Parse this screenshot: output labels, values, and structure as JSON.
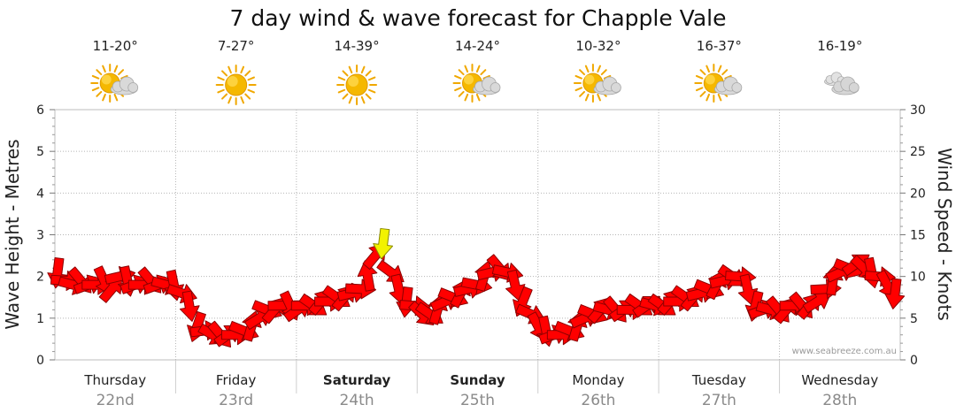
{
  "chart_data": {
    "type": "line",
    "title": "7 day wind & wave forecast for Chapple Vale",
    "ylabel_left": "Wave Height - Metres",
    "ylabel_right": "Wind Speed - Knots",
    "ylim_left": [
      0,
      6
    ],
    "ylim_right": [
      0,
      30
    ],
    "yticks_left": [
      "0",
      "1",
      "2",
      "3",
      "4",
      "5",
      "6"
    ],
    "yticks_right": [
      "0",
      "5",
      "10",
      "15",
      "20",
      "25",
      "30"
    ],
    "credit": "www.seabreeze.com.au",
    "days": [
      {
        "name": "Thursday",
        "date": "22nd",
        "bold": false,
        "temp": "11-20°",
        "weather": "partly-cloudy"
      },
      {
        "name": "Friday",
        "date": "23rd",
        "bold": false,
        "temp": "7-27°",
        "weather": "sunny"
      },
      {
        "name": "Saturday",
        "date": "24th",
        "bold": true,
        "temp": "14-39°",
        "weather": "sunny"
      },
      {
        "name": "Sunday",
        "date": "25th",
        "bold": true,
        "temp": "14-24°",
        "weather": "partly-cloudy"
      },
      {
        "name": "Monday",
        "date": "26th",
        "bold": false,
        "temp": "10-32°",
        "weather": "partly-cloudy"
      },
      {
        "name": "Tuesday",
        "date": "27th",
        "bold": false,
        "temp": "16-37°",
        "weather": "partly-cloudy"
      },
      {
        "name": "Wednesday",
        "date": "28th",
        "bold": false,
        "temp": "16-19°",
        "weather": "cloudy"
      }
    ],
    "wind_knots": [
      10.5,
      9.5,
      9.0,
      9.5,
      9.0,
      9.0,
      9.5,
      8.5,
      10.0,
      9.5,
      9.0,
      9.0,
      9.5,
      9.0,
      9.0,
      9.0,
      8.0,
      6.5,
      4.0,
      3.5,
      3.0,
      3.0,
      3.0,
      3.0,
      3.5,
      4.0,
      5.0,
      6.0,
      6.0,
      6.5,
      6.5,
      6.0,
      6.5,
      6.5,
      7.0,
      7.0,
      7.5,
      7.5,
      8.0,
      8.5,
      10.0,
      12.5,
      14.0,
      10.5,
      8.5,
      7.0,
      6.5,
      5.5,
      5.5,
      6.0,
      7.0,
      7.5,
      8.0,
      8.5,
      9.0,
      10.0,
      10.5,
      11.0,
      10.5,
      9.0,
      7.0,
      5.5,
      4.0,
      3.5,
      3.0,
      3.0,
      3.5,
      4.0,
      5.0,
      5.5,
      6.0,
      6.0,
      6.0,
      6.0,
      6.0,
      6.5,
      6.5,
      6.5,
      6.5,
      7.0,
      7.0,
      7.5,
      7.5,
      8.0,
      8.5,
      9.0,
      9.5,
      10.0,
      10.0,
      8.5,
      6.5,
      6.0,
      6.0,
      6.0,
      6.0,
      6.5,
      6.5,
      6.5,
      7.0,
      8.5,
      9.5,
      10.5,
      11.0,
      11.5,
      11.0,
      10.5,
      10.0,
      9.0,
      8.0
    ]
  }
}
